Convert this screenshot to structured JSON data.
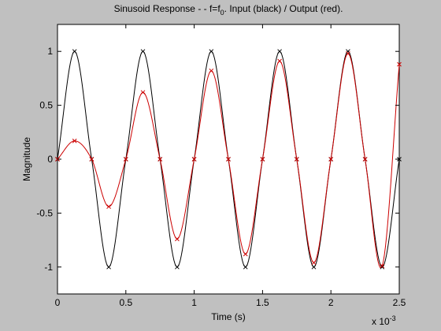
{
  "chart_data": {
    "type": "line",
    "title": {
      "prefix": "Sinusoid Response - - f=f",
      "subscript": "0",
      "suffix": ". Input (black) /  Output (red)."
    },
    "xlabel": "Time (s)",
    "ylabel": "Magnitude",
    "x_scale_label": {
      "base": "x 10",
      "exponent": "-3"
    },
    "xlim": [
      0,
      2.5
    ],
    "ylim": [
      -1.25,
      1.25
    ],
    "xticks": [
      0,
      0.5,
      1,
      1.5,
      2,
      2.5
    ],
    "xtick_labels": [
      "0",
      "0.5",
      "1",
      "1.5",
      "2",
      "2.5"
    ],
    "yticks": [
      -1,
      -0.5,
      0,
      0.5,
      1
    ],
    "ytick_labels": [
      "-1",
      "-0.5",
      "0",
      "0.5",
      "1"
    ],
    "grid": false,
    "series": [
      {
        "color": "#000000",
        "marker": "x",
        "x": [
          0,
          0.125,
          0.25,
          0.375,
          0.5,
          0.625,
          0.75,
          0.875,
          1,
          1.125,
          1.25,
          1.375,
          1.5,
          1.625,
          1.75,
          1.875,
          2,
          2.125,
          2.25,
          2.375,
          2.5
        ],
        "values": [
          0,
          1,
          0,
          -1,
          0,
          1,
          0,
          -1,
          0,
          1,
          0,
          -1,
          0,
          1,
          0,
          -1,
          0,
          1,
          0,
          -1,
          0
        ]
      },
      {
        "color": "#cc0000",
        "marker": "x",
        "x": [
          0,
          0.125,
          0.25,
          0.375,
          0.5,
          0.625,
          0.75,
          0.875,
          1,
          1.125,
          1.25,
          1.375,
          1.5,
          1.625,
          1.75,
          1.875,
          2,
          2.125,
          2.25,
          2.375,
          2.5
        ],
        "values": [
          0,
          0.17,
          0,
          -0.44,
          0,
          0.62,
          0,
          -0.74,
          0,
          0.82,
          0,
          -0.88,
          0,
          0.91,
          0,
          -0.96,
          0,
          0.98,
          0,
          -0.99,
          0.88
        ]
      }
    ]
  }
}
